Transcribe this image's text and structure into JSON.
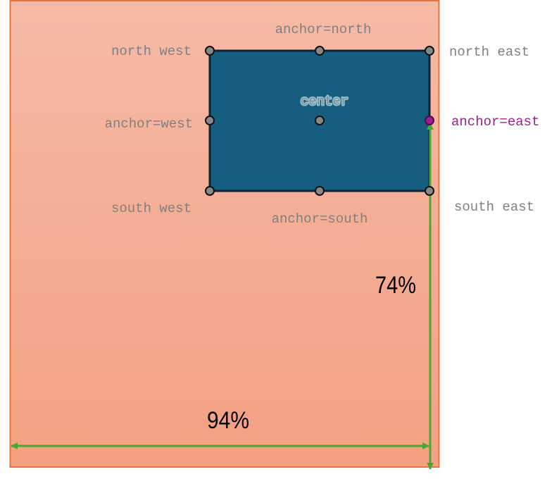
{
  "labels": {
    "north_west": "north west",
    "north": "anchor=north",
    "north_east": "north east",
    "west": "anchor=west",
    "center": "center",
    "east": "anchor=east",
    "south_west": "south west",
    "south": "anchor=south",
    "south_east": "south east"
  },
  "dimensions": {
    "height_pct": "74%",
    "width_pct": "94%"
  },
  "colors": {
    "container_top": "#f5baa6",
    "container_bottom": "#f4a082",
    "container_border": "#e8743a",
    "rect_fill": "#165e80",
    "rect_border": "#0b2335",
    "anchor_dot": "#888888",
    "highlight": "#9b1f8f",
    "arrow": "#4aa832",
    "label_gray": "#808080"
  }
}
